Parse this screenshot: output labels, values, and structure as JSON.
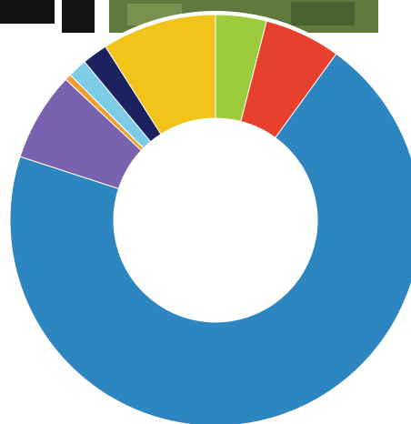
{
  "chart_data": {
    "type": "donut",
    "values": [
      4,
      6,
      70,
      7,
      0.5,
      1.5,
      2,
      9
    ],
    "colors": [
      "#9ccc3c",
      "#e8402e",
      "#2e86c1",
      "#7b62b0",
      "#f0a030",
      "#7ecde8",
      "#1c2260",
      "#f2c318"
    ]
  }
}
